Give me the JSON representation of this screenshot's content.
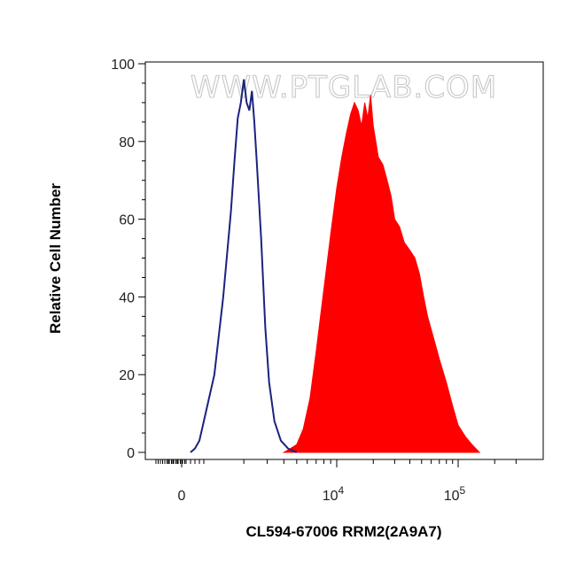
{
  "chart_data": {
    "type": "area",
    "watermark": "WWW.PTGLAB.COM",
    "xlabel": "CL594-67006 RRM2(2A9A7)",
    "ylabel": "Relative Cell Number",
    "ylim": [
      0,
      100
    ],
    "y_ticks": [
      "0",
      "20",
      "40",
      "60",
      "80",
      "100"
    ],
    "x_scale": "biexponential",
    "x_ticks": [
      {
        "label": "0",
        "value": 0
      },
      {
        "label": "10",
        "sup": "4",
        "value": 10000
      },
      {
        "label": "10",
        "sup": "5",
        "value": 100000
      }
    ],
    "colors": {
      "sample": "#ff0000",
      "control": "#1a237e"
    },
    "series": [
      {
        "style": "outline",
        "color": "#1a237e",
        "x": [
          400,
          600,
          800,
          1000,
          1200,
          1400,
          1600,
          1700,
          1800,
          1900,
          2000,
          2100,
          2200,
          2300,
          2400,
          2500,
          2700,
          2900,
          3100,
          3400,
          3800,
          4300,
          5000
        ],
        "y": [
          0,
          1,
          3,
          8,
          20,
          40,
          62,
          75,
          86,
          90,
          96,
          90,
          88,
          93,
          85,
          75,
          55,
          32,
          18,
          8,
          3,
          1,
          0
        ]
      },
      {
        "style": "filled",
        "color": "#ff0000",
        "x": [
          4000,
          4500,
          5000,
          5600,
          6300,
          7000,
          8000,
          9000,
          10000,
          11000,
          12000,
          13000,
          14000,
          15000,
          16000,
          17000,
          18000,
          19000,
          20000,
          21000,
          22000,
          24000,
          26000,
          28000,
          30000,
          33000,
          36000,
          40000,
          44000,
          48000,
          52000,
          56000,
          62000,
          70000,
          80000,
          90000,
          100000,
          115000,
          130000,
          150000
        ],
        "y": [
          0,
          1,
          2,
          6,
          14,
          26,
          42,
          56,
          68,
          76,
          82,
          87,
          90,
          88,
          84,
          90,
          86,
          92,
          84,
          80,
          76,
          74,
          70,
          66,
          60,
          58,
          54,
          52,
          50,
          46,
          40,
          35,
          30,
          24,
          18,
          12,
          7,
          4,
          2,
          0
        ]
      }
    ]
  }
}
